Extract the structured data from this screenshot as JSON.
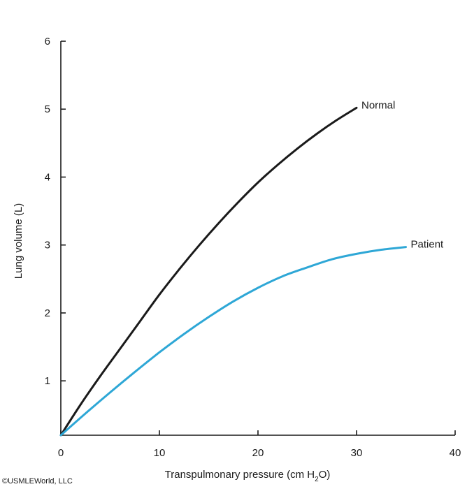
{
  "chart_data": {
    "type": "line",
    "xlabel": "Transpulmonary pressure (cm H",
    "xlabel_subscript": "2",
    "xlabel_suffix": "O)",
    "ylabel": "Lung volume (L)",
    "xlim": [
      0,
      40
    ],
    "ylim": [
      0.2,
      6
    ],
    "x_ticks": [
      0,
      10,
      20,
      30,
      40
    ],
    "y_ticks": [
      1,
      2,
      3,
      4,
      5,
      6
    ],
    "grid": false,
    "series": [
      {
        "name": "Normal",
        "color": "#1a1a1a",
        "x": [
          0,
          2,
          4,
          6,
          8,
          10,
          12,
          14,
          16,
          18,
          20,
          22,
          24,
          26,
          28,
          30
        ],
        "y": [
          0.2,
          0.65,
          1.07,
          1.47,
          1.87,
          2.27,
          2.64,
          2.99,
          3.32,
          3.63,
          3.92,
          4.18,
          4.42,
          4.64,
          4.84,
          5.02
        ]
      },
      {
        "name": "Patient",
        "color": "#2ea7d6",
        "x": [
          0,
          2.5,
          5,
          7.5,
          10,
          12.5,
          15,
          17.5,
          20,
          22.5,
          25,
          27.5,
          30,
          32.5,
          35
        ],
        "y": [
          0.2,
          0.52,
          0.83,
          1.13,
          1.42,
          1.69,
          1.94,
          2.17,
          2.37,
          2.54,
          2.67,
          2.79,
          2.87,
          2.93,
          2.97
        ]
      }
    ]
  },
  "credit": "©USMLEWorld, LLC"
}
